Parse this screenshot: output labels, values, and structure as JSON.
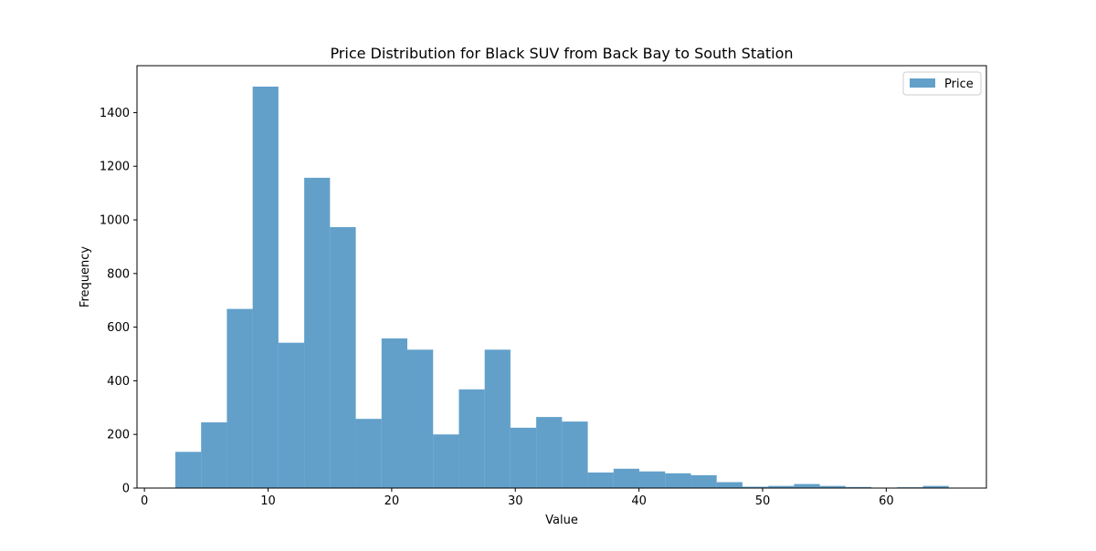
{
  "chart_data": {
    "type": "bar",
    "title": "Price Distribution for Black SUV from Back Bay to South Station",
    "xlabel": "Value",
    "ylabel": "Frequency",
    "xlim": [
      -0.6,
      68.1
    ],
    "ylim": [
      0,
      1575
    ],
    "xticks": [
      0,
      10,
      20,
      30,
      40,
      50,
      60
    ],
    "yticks": [
      0,
      200,
      400,
      600,
      800,
      1000,
      1200,
      1400
    ],
    "grid": false,
    "legend_position": "top-right",
    "series": [
      {
        "name": "Price",
        "color": "#1f77b4",
        "opacity": 0.7,
        "bin_start": 2.5,
        "bin_width": 2.085,
        "values": [
          135,
          245,
          668,
          1497,
          542,
          1157,
          973,
          258,
          558,
          516,
          200,
          368,
          516,
          225,
          265,
          248,
          58,
          72,
          62,
          55,
          48,
          22,
          5,
          8,
          15,
          8,
          4,
          0,
          3,
          8
        ]
      }
    ]
  }
}
